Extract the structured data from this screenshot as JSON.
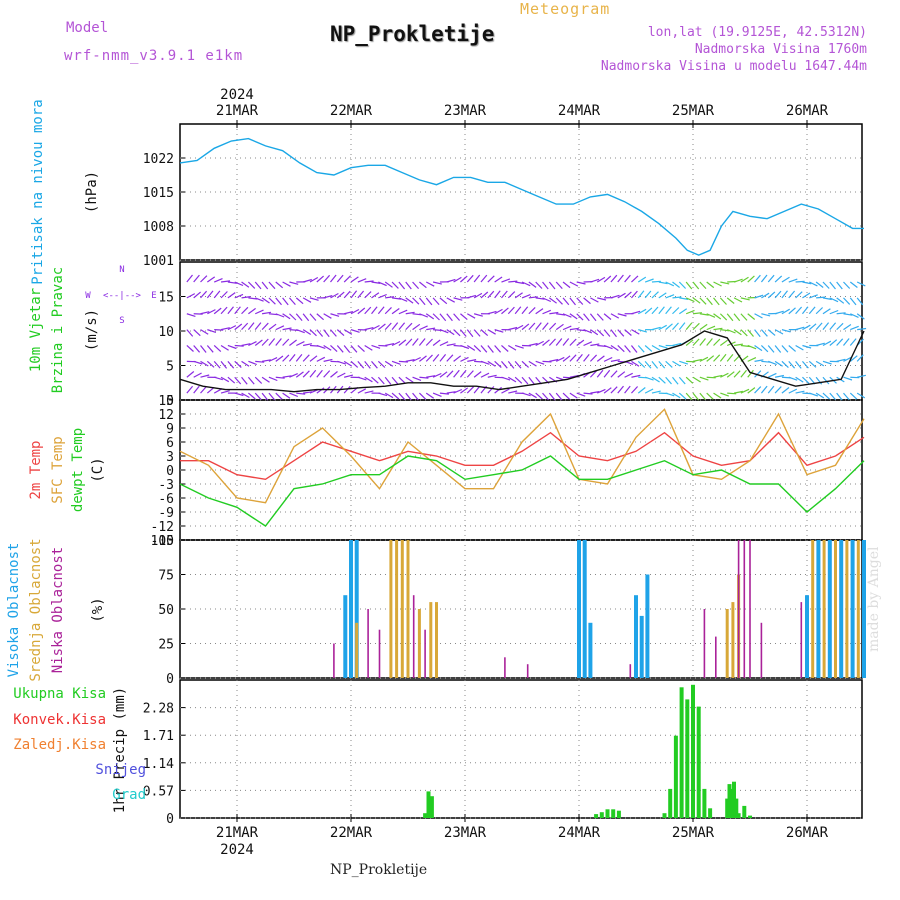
{
  "header": {
    "model_label": "Model",
    "model_name": "wrf-nmm_v3.9.1  e1km",
    "title": "NP_Prokletije",
    "meteogram": "Meteogram",
    "location_lines": [
      "lon,lat (19.9125E, 42.5312N)",
      "Nadmorska Visina 1760m",
      "Nadmorska Visina u modelu 1647.44m"
    ]
  },
  "footer": {
    "station": "NP_Prokletije",
    "watermark": "made by Angel"
  },
  "colors": {
    "pressure": "#1aa7e6",
    "temp2m": "#ee4444",
    "sfc": "#dda33a",
    "dewpt": "#22cc22",
    "high": "#1fa3e8",
    "mid": "#d8a838",
    "low": "#aa2299",
    "rain": "#22cc22",
    "conv": "#ee3333",
    "frz": "#f08030",
    "snow": "#5050dd",
    "hail": "#22cccc",
    "wind_purple": "#8a2be2"
  },
  "chart_data": [
    {
      "type": "line",
      "panel": "pressure",
      "ylabel": [
        "Pritisak na nivou mora",
        "(hPa)"
      ],
      "ylim": [
        1001,
        1029
      ],
      "yticks": [
        1001,
        1008,
        1015,
        1022
      ],
      "x_unit": "days since 21MAR 00Z",
      "top_axis_year": "2024",
      "categories": [
        "21MAR",
        "22MAR",
        "23MAR",
        "24MAR",
        "25MAR",
        "26MAR"
      ],
      "grid": true,
      "series": [
        {
          "name": "pressure",
          "x": [
            -0.5,
            -0.35,
            -0.2,
            -0.05,
            0.1,
            0.25,
            0.4,
            0.55,
            0.7,
            0.85,
            1.0,
            1.15,
            1.3,
            1.45,
            1.6,
            1.75,
            1.9,
            2.05,
            2.2,
            2.35,
            2.5,
            2.65,
            2.8,
            2.95,
            3.1,
            3.25,
            3.4,
            3.55,
            3.7,
            3.85,
            3.95,
            4.05,
            4.15,
            4.25,
            4.35,
            4.5,
            4.65,
            4.8,
            4.95,
            5.1,
            5.25,
            5.4,
            5.5
          ],
          "values": [
            1021,
            1021.5,
            1024,
            1025.5,
            1026,
            1024.5,
            1023.5,
            1021,
            1019,
            1018.5,
            1020,
            1020.5,
            1020.5,
            1019,
            1017.5,
            1016.5,
            1018,
            1018,
            1017,
            1017,
            1015.5,
            1014,
            1012.5,
            1012.5,
            1014,
            1014.5,
            1013,
            1011,
            1008.5,
            1005.5,
            1003,
            1002,
            1003,
            1008,
            1011,
            1010,
            1009.5,
            1011,
            1012.5,
            1011.5,
            1009.5,
            1007.5,
            1007.5
          ]
        }
      ]
    },
    {
      "type": "scatter",
      "panel": "wind",
      "ylabel": [
        "10m Vjetar",
        "Brzina i Pravac",
        "(m/s)"
      ],
      "ylim": [
        0,
        20
      ],
      "yticks": [
        0,
        5,
        10,
        15
      ],
      "legend_labels": [
        "N",
        "S",
        "W",
        "E",
        "<--|-->"
      ],
      "series": [
        {
          "name": "wind speed",
          "x": [
            -0.5,
            -0.3,
            -0.1,
            0.1,
            0.3,
            0.5,
            0.7,
            0.9,
            1.1,
            1.3,
            1.5,
            1.7,
            1.9,
            2.1,
            2.3,
            2.5,
            2.7,
            2.9,
            3.1,
            3.3,
            3.5,
            3.7,
            3.9,
            4.1,
            4.3,
            4.5,
            4.7,
            4.9,
            5.1,
            5.3,
            5.5
          ],
          "values": [
            3,
            2,
            1.5,
            1.5,
            1.5,
            1.2,
            1.5,
            1.5,
            1.8,
            2,
            2.5,
            2.5,
            2,
            2,
            1.5,
            2,
            2.5,
            3,
            4,
            5,
            6,
            7,
            8,
            10,
            9,
            4,
            3,
            2,
            2.5,
            3,
            10
          ]
        }
      ]
    },
    {
      "type": "line",
      "panel": "temperature",
      "ylabel": [
        "2m Temp",
        "SFC Temp",
        "dewpt Temp",
        "(C)"
      ],
      "ylim": [
        -15,
        15
      ],
      "yticks": [
        -15,
        -12,
        -9,
        -6,
        -3,
        0,
        3,
        6,
        9,
        12,
        15
      ],
      "series": [
        {
          "name": "2m Temp",
          "x": [
            -0.5,
            -0.25,
            0,
            0.25,
            0.5,
            0.75,
            1,
            1.25,
            1.5,
            1.75,
            2,
            2.25,
            2.5,
            2.75,
            3,
            3.25,
            3.5,
            3.75,
            4,
            4.25,
            4.5,
            4.75,
            5,
            5.25,
            5.5
          ],
          "values": [
            2,
            2,
            -1,
            -2,
            2,
            6,
            4,
            2,
            4,
            3,
            1,
            1,
            4,
            8,
            3,
            2,
            4,
            8,
            3,
            1,
            2,
            8,
            1,
            3,
            7
          ]
        },
        {
          "name": "SFC Temp",
          "x": [
            -0.5,
            -0.25,
            0,
            0.25,
            0.5,
            0.75,
            1,
            1.25,
            1.5,
            1.75,
            2,
            2.25,
            2.5,
            2.75,
            3,
            3.25,
            3.5,
            3.75,
            4,
            4.25,
            4.5,
            4.75,
            5,
            5.25,
            5.5
          ],
          "values": [
            4,
            1,
            -6,
            -7,
            5,
            9,
            3,
            -4,
            6,
            1,
            -4,
            -4,
            6,
            12,
            -2,
            -3,
            7,
            13,
            -1,
            -2,
            2,
            12,
            -1,
            1,
            11
          ]
        },
        {
          "name": "dewpt Temp",
          "x": [
            -0.5,
            -0.25,
            0,
            0.25,
            0.5,
            0.75,
            1,
            1.25,
            1.5,
            1.75,
            2,
            2.25,
            2.5,
            2.75,
            3,
            3.25,
            3.5,
            3.75,
            4,
            4.25,
            4.5,
            4.75,
            5,
            5.25,
            5.5
          ],
          "values": [
            -3,
            -6,
            -8,
            -12,
            -4,
            -3,
            -1,
            -1,
            3,
            2,
            -2,
            -1,
            0,
            3,
            -2,
            -2,
            0,
            2,
            -1,
            0,
            -3,
            -3,
            -9,
            -4,
            2
          ]
        }
      ]
    },
    {
      "type": "bar",
      "panel": "cloud",
      "ylabel": [
        "Visoka Oblacnost",
        "Srednja Oblacnost",
        "Niska Oblacnost",
        "(%)"
      ],
      "ylim": [
        0,
        100
      ],
      "yticks": [
        0,
        25,
        50,
        75,
        100
      ],
      "series": [
        {
          "name": "Visoka Oblacnost",
          "x": [
            0.95,
            1.0,
            1.05,
            3.0,
            3.05,
            3.1,
            3.5,
            3.55,
            3.6,
            5.0,
            5.1,
            5.2,
            5.3,
            5.4,
            5.5
          ],
          "values": [
            60,
            100,
            100,
            100,
            100,
            40,
            60,
            45,
            75,
            60,
            100,
            100,
            100,
            100,
            100
          ]
        },
        {
          "name": "Srednja Oblacnost",
          "x": [
            1.05,
            1.35,
            1.4,
            1.45,
            1.5,
            1.6,
            1.7,
            1.75,
            4.3,
            4.35,
            4.4,
            5.05,
            5.15,
            5.25,
            5.35,
            5.45
          ],
          "values": [
            40,
            100,
            100,
            100,
            100,
            50,
            55,
            55,
            50,
            55,
            75,
            100,
            100,
            100,
            100,
            100
          ]
        },
        {
          "name": "Niska Oblacnost",
          "x": [
            0.85,
            1.15,
            1.25,
            1.55,
            1.65,
            2.35,
            2.55,
            3.45,
            4.1,
            4.2,
            4.4,
            4.45,
            4.5,
            4.6,
            4.95
          ],
          "values": [
            25,
            50,
            35,
            60,
            35,
            15,
            10,
            10,
            50,
            30,
            100,
            100,
            100,
            40,
            55
          ]
        }
      ]
    },
    {
      "type": "bar",
      "panel": "precip",
      "ylabel": [
        "1hr Precip (mm)"
      ],
      "legend": [
        "Ukupna Kisa",
        "Konvek.Kisa",
        "Zaledj.Kisa",
        "Snijeg",
        "Grad"
      ],
      "ylim": [
        0,
        2.85
      ],
      "yticks": [
        0,
        0.57,
        1.14,
        1.71,
        2.28
      ],
      "bottom_axis_year": "2024",
      "series": [
        {
          "name": "Ukupna Kisa",
          "x": [
            1.65,
            1.68,
            1.71,
            3.15,
            3.2,
            3.25,
            3.3,
            3.35,
            3.75,
            3.8,
            3.85,
            3.9,
            3.95,
            4.0,
            4.05,
            4.1,
            4.15,
            4.3,
            4.32,
            4.34,
            4.36,
            4.38,
            4.4,
            4.45,
            4.5
          ],
          "values": [
            0.1,
            0.55,
            0.45,
            0.08,
            0.12,
            0.18,
            0.18,
            0.15,
            0.1,
            0.6,
            1.7,
            2.7,
            2.45,
            2.75,
            2.3,
            0.6,
            0.2,
            0.4,
            0.7,
            0.6,
            0.75,
            0.4,
            0.1,
            0.25,
            0.05
          ]
        }
      ]
    }
  ]
}
